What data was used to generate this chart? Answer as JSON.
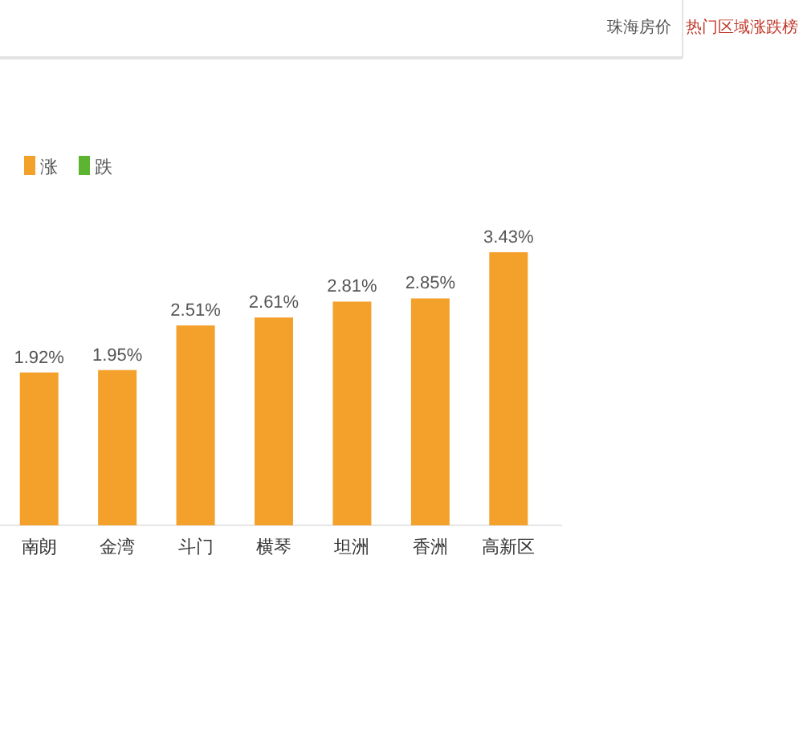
{
  "chart_data": {
    "type": "bar",
    "title": "热门区域涨跌榜",
    "annotations": [
      "珠海房价"
    ],
    "categories": [
      "南朗",
      "金湾",
      "斗门",
      "横琴",
      "坦洲",
      "香洲",
      "高新区"
    ],
    "series": [
      {
        "name": "涨",
        "color": "#f4a12c",
        "values": [
          1.92,
          1.95,
          2.51,
          2.61,
          2.81,
          2.85,
          3.43
        ],
        "value_labels": [
          "1.92%",
          "1.95%",
          "2.51%",
          "2.61%",
          "2.81%",
          "2.85%",
          "3.43%"
        ]
      },
      {
        "name": "跌",
        "color": "#5cb531",
        "values": [
          null,
          null,
          null,
          null,
          null,
          null,
          null
        ]
      }
    ],
    "tick_labels": "x",
    "legend": "top left"
  }
}
